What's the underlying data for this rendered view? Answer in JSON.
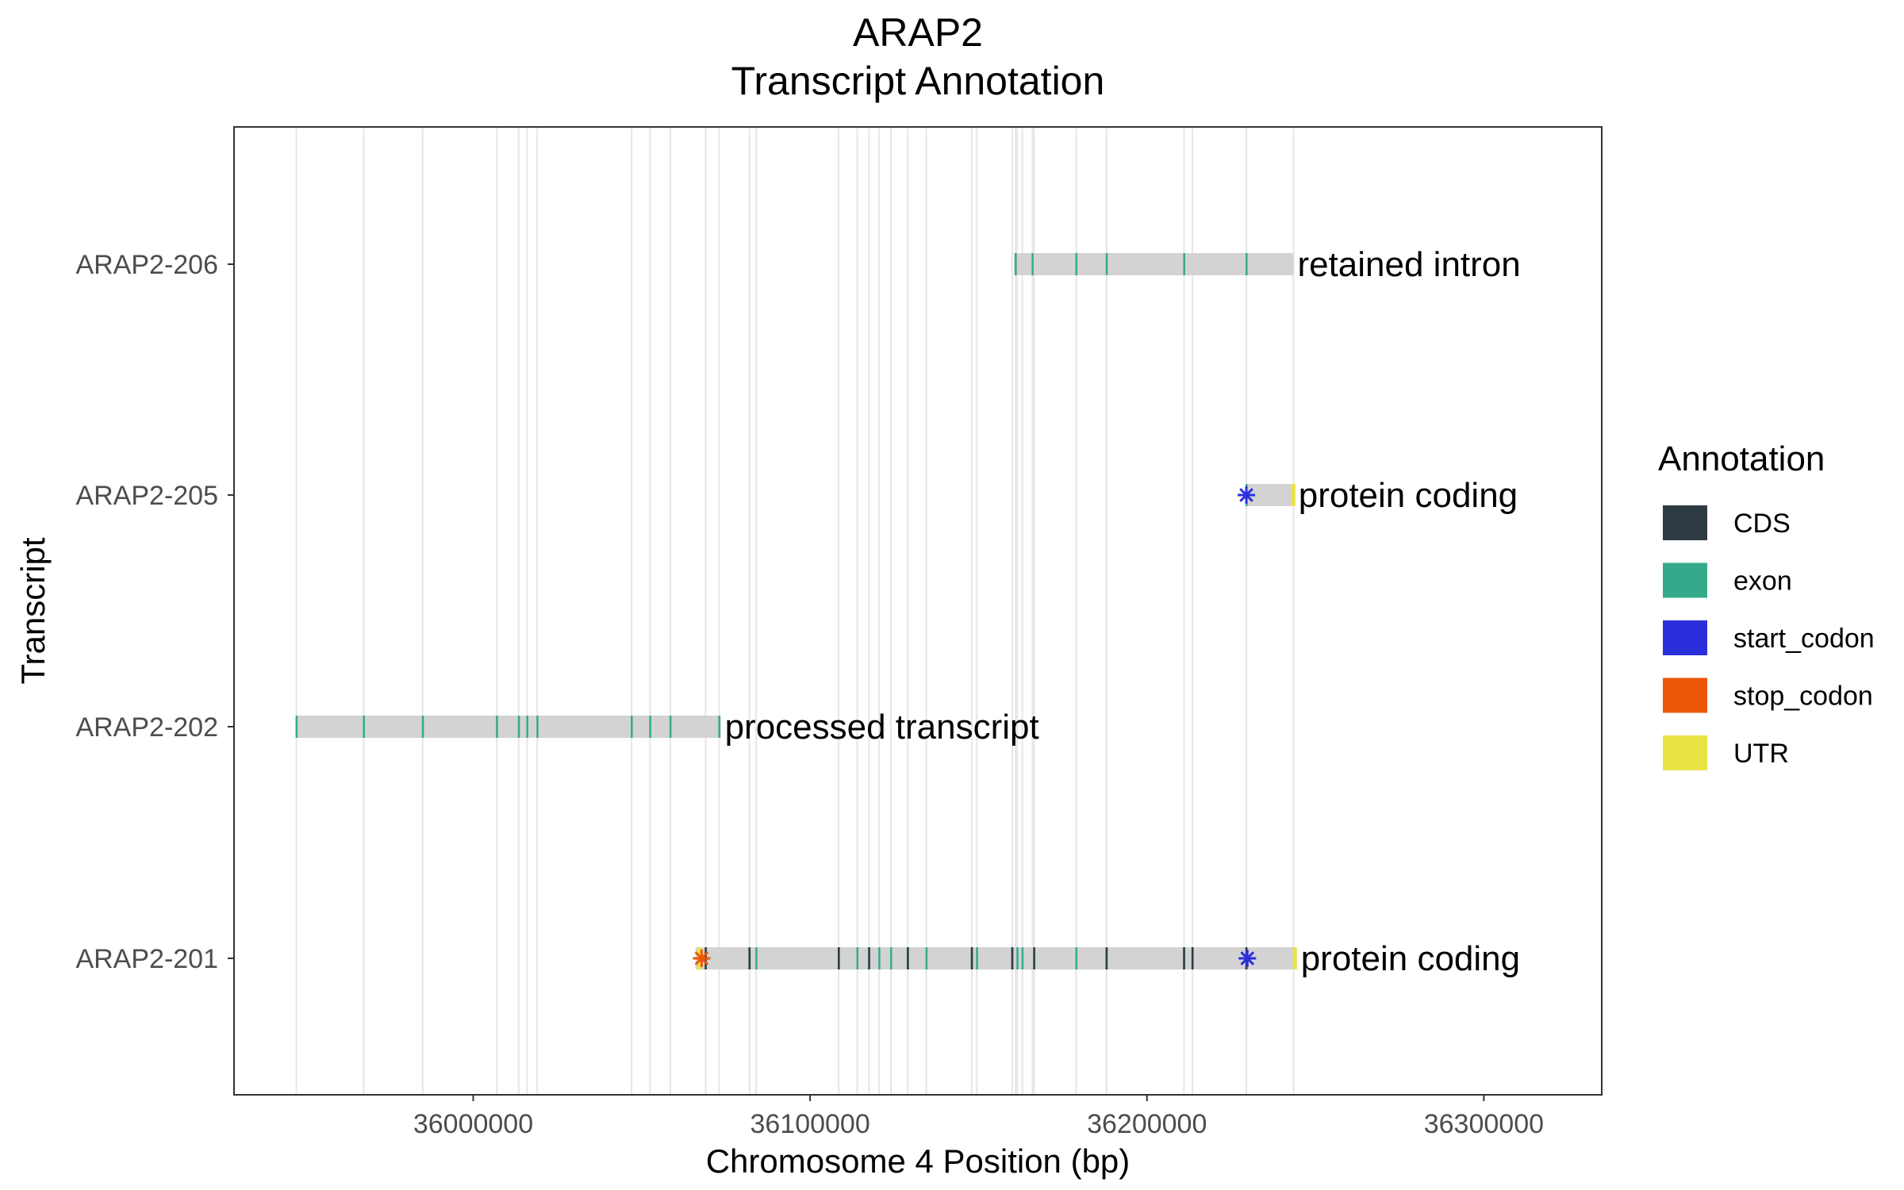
{
  "chart_data": {
    "type": "gantt",
    "title": "ARAP2",
    "subtitle": "Transcript Annotation",
    "xlabel": "Chromosome 4 Position (bp)",
    "ylabel": "Transcript",
    "xlim": [
      35929000,
      36335000
    ],
    "xticks": [
      36000000,
      36100000,
      36200000,
      36300000
    ],
    "xtick_labels": [
      "36000000",
      "36100000",
      "36200000",
      "36300000"
    ],
    "grid": "vertical lines at exon positions",
    "legend": {
      "title": "Annotation",
      "position": "right",
      "items": [
        {
          "label": "CDS",
          "color": "#2e3b43"
        },
        {
          "label": "exon",
          "color": "#35aa8a"
        },
        {
          "label": "start_codon",
          "color": "#2b2fdb"
        },
        {
          "label": "stop_codon",
          "color": "#ec5608"
        },
        {
          "label": "UTR",
          "color": "#e9e344"
        }
      ]
    },
    "transcripts": [
      {
        "name": "ARAP2-206",
        "biotype": "retained intron",
        "start": 36160500,
        "end": 36243500,
        "exons": [
          36161000,
          36166000,
          36179000,
          36188000,
          36211000,
          36229500
        ],
        "cds": [],
        "start_codon": null,
        "stop_codon": null,
        "utr": []
      },
      {
        "name": "ARAP2-205",
        "biotype": "protein coding",
        "start": 36229500,
        "end": 36243800,
        "exons": [
          36229500,
          36243500
        ],
        "cds": [],
        "start_codon": 36229500,
        "stop_codon": null,
        "utr": [
          36243600
        ]
      },
      {
        "name": "ARAP2-202",
        "biotype": "processed transcript",
        "start": 35947500,
        "end": 36073500,
        "exons": [
          35947500,
          35967500,
          35985000,
          36007000,
          36013500,
          36016000,
          36019000,
          36047000,
          36052500,
          36058500,
          36073000
        ],
        "cds": [],
        "start_codon": null,
        "stop_codon": null,
        "utr": []
      },
      {
        "name": "ARAP2-201",
        "biotype": "protein coding",
        "start": 36066000,
        "end": 36244500,
        "exons": [
          36069000,
          36082000,
          36084000,
          36108500,
          36114000,
          36117500,
          36120500,
          36124000,
          36129000,
          36134500,
          36148000,
          36149500,
          36160000,
          36161500,
          36163000,
          36166500,
          36179000,
          36188000,
          36211000,
          36213500,
          36229500
        ],
        "cds": [
          36069000,
          36082000,
          36108500,
          36117500,
          36129000,
          36148000,
          36160000,
          36166500,
          36188000,
          36211000,
          36213500,
          36229500
        ],
        "start_codon": 36229800,
        "stop_codon": 36067800,
        "utr": [
          36067200,
          36244000
        ]
      }
    ]
  }
}
